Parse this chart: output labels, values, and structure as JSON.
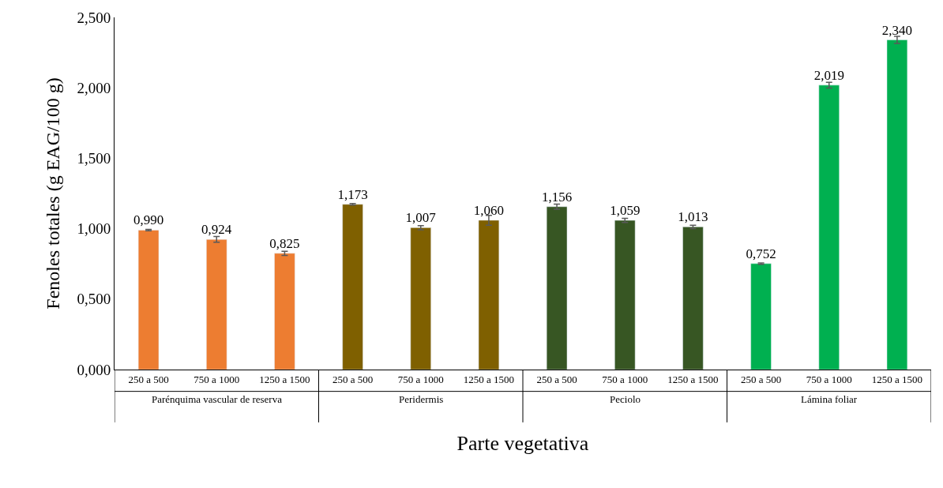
{
  "chart_data": {
    "type": "bar",
    "xlabel": "Parte vegetativa",
    "ylabel": "Fenoles totales (g EAG/100 g)",
    "categories": [
      "250 a 500",
      "750 a 1000",
      "1250 a 1500",
      "250 a 500",
      "750 a 1000",
      "1250 a 1500",
      "250 a 500",
      "750 a 1000",
      "1250 a 1500",
      "250 a 500",
      "750 a 1000",
      "1250 a 1500"
    ],
    "series": [
      {
        "name": "Parénquima vascular de reserva",
        "color": "#ed7d31",
        "values": [
          0.99,
          0.924,
          0.825,
          null,
          null,
          null,
          null,
          null,
          null,
          null,
          null,
          null
        ],
        "errors": [
          0.005,
          0.02,
          0.015,
          null,
          null,
          null,
          null,
          null,
          null,
          null,
          null,
          null
        ],
        "value_labels": [
          "0,990",
          "0,924",
          "0,825",
          null,
          null,
          null,
          null,
          null,
          null,
          null,
          null,
          null
        ]
      },
      {
        "name": "Peridermis",
        "color": "#7f6000",
        "values": [
          null,
          null,
          null,
          1.173,
          1.007,
          1.06,
          null,
          null,
          null,
          null,
          null,
          null
        ],
        "errors": [
          null,
          null,
          null,
          0.005,
          0.015,
          0.035,
          null,
          null,
          null,
          null,
          null,
          null
        ],
        "value_labels": [
          null,
          null,
          null,
          "1,173",
          "1,007",
          "1,060",
          null,
          null,
          null,
          null,
          null,
          null
        ]
      },
      {
        "name": "Peciolo",
        "color": "#375623",
        "values": [
          null,
          null,
          null,
          null,
          null,
          null,
          1.156,
          1.059,
          1.013,
          null,
          null,
          null
        ],
        "errors": [
          null,
          null,
          null,
          null,
          null,
          null,
          0.018,
          0.015,
          0.012,
          null,
          null,
          null
        ],
        "value_labels": [
          null,
          null,
          null,
          null,
          null,
          null,
          "1,156",
          "1,059",
          "1,013",
          null,
          null,
          null
        ]
      },
      {
        "name": "Lámina foliar",
        "color": "#00b050",
        "values": [
          null,
          null,
          null,
          null,
          null,
          null,
          null,
          null,
          null,
          0.752,
          2.019,
          2.34
        ],
        "errors": [
          null,
          null,
          null,
          null,
          null,
          null,
          null,
          null,
          null,
          0.005,
          0.02,
          0.025
        ],
        "value_labels": [
          null,
          null,
          null,
          null,
          null,
          null,
          null,
          null,
          null,
          "0,752",
          "2,019",
          "2,340"
        ]
      }
    ],
    "ylim": [
      0,
      2.5
    ],
    "yticks": [
      {
        "value": 0,
        "label": "0,000"
      },
      {
        "value": 0.5,
        "label": "0,500"
      },
      {
        "value": 1,
        "label": "1,000"
      },
      {
        "value": 1.5,
        "label": "1,500"
      },
      {
        "value": 2,
        "label": "2,000"
      },
      {
        "value": 2.5,
        "label": "2,500"
      }
    ],
    "legend": false
  }
}
